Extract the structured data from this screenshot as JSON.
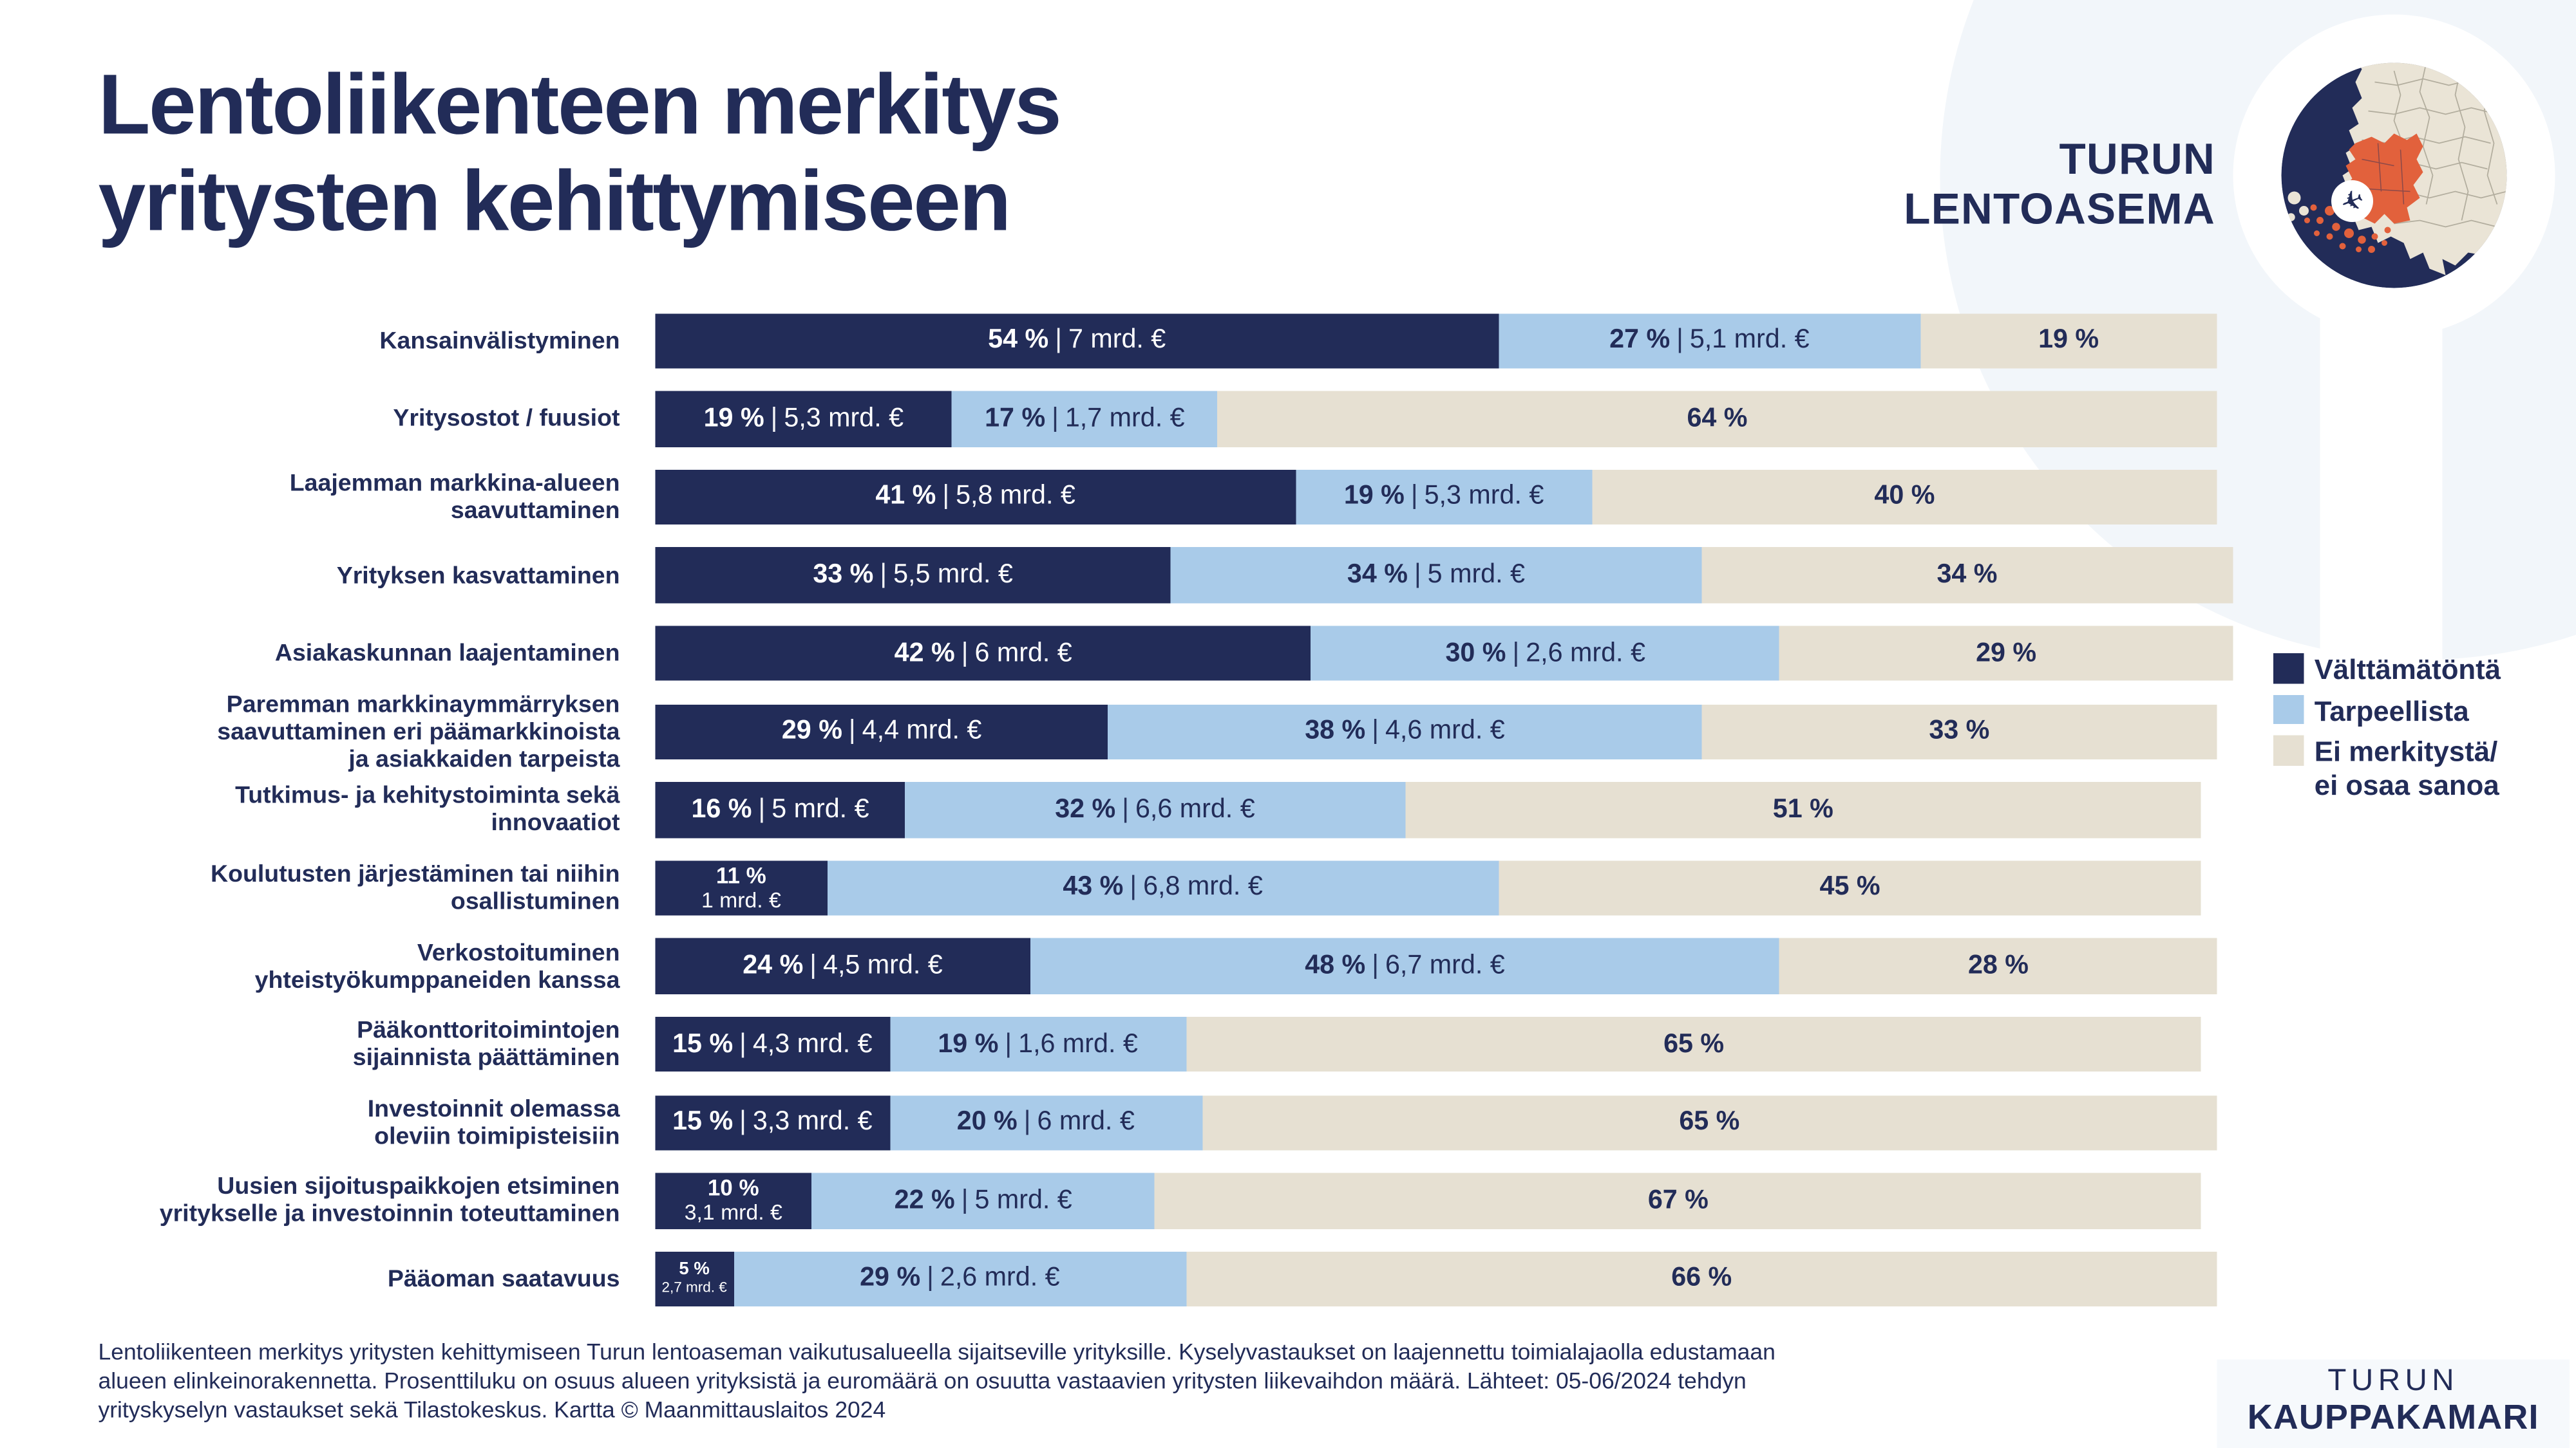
{
  "page": {
    "title_lines": [
      "Lentoliikenteen merkitys",
      "yritysten kehittymiseen"
    ],
    "airport_logo": {
      "line1": "TURUN",
      "line2": "LENTOASEMA"
    },
    "chamber_logo": {
      "line1": "TURUN",
      "line2": "KAUPPAKAMARI"
    },
    "footer_lines": [
      "Lentoliikenteen merkitys yritysten kehittymiseen Turun lentoaseman vaikutusalueella sijaitseville yrityksille. Kyselyvastaukset on laajennettu toimialajaolla edustamaan",
      "alueen elinkeinorakennetta. Prosenttiluku on osuus alueen yrityksistä ja euromäärä on osuutta vastaavien yritysten liikevaihdon määrä. Lähteet: 05-06/2024 tehdyn",
      "yrityskyselyn vastaukset sekä Tilastokeskus. Kartta © Maanmittauslaitos 2024"
    ]
  },
  "colors": {
    "navy": "#222C58",
    "blue": "#A9CBE9",
    "beige": "#E6E0D2",
    "pale": "#F2F6FA",
    "orange": "#E2613C",
    "land": "#EAE4D6",
    "border": "#A9A494",
    "white": "#FFFFFF"
  },
  "legend": {
    "items": [
      {
        "label_lines": [
          "Välttämätöntä"
        ],
        "color_key": "navy"
      },
      {
        "label_lines": [
          "Tarpeellista"
        ],
        "color_key": "blue"
      },
      {
        "label_lines": [
          "Ei merkitystä/",
          "ei osaa sanoa"
        ],
        "color_key": "beige"
      }
    ]
  },
  "rows": [
    {
      "label_lines": [
        "Kansainvälistyminen"
      ],
      "necessary": {
        "pct": 54,
        "amount": "7 mrd. €",
        "layout": "inline"
      },
      "useful": {
        "pct": 27,
        "amount": "5,1 mrd. €"
      },
      "none": {
        "pct": 19
      }
    },
    {
      "label_lines": [
        "Yritysostot / fuusiot"
      ],
      "necessary": {
        "pct": 19,
        "amount": "5,3 mrd. €",
        "layout": "inline"
      },
      "useful": {
        "pct": 17,
        "amount": "1,7 mrd. €"
      },
      "none": {
        "pct": 64
      }
    },
    {
      "label_lines": [
        "Laajemman markkina-alueen",
        "saavuttaminen"
      ],
      "necessary": {
        "pct": 41,
        "amount": "5,8 mrd. €",
        "layout": "inline"
      },
      "useful": {
        "pct": 19,
        "amount": "5,3 mrd. €"
      },
      "none": {
        "pct": 40
      }
    },
    {
      "label_lines": [
        "Yrityksen kasvattaminen"
      ],
      "necessary": {
        "pct": 33,
        "amount": "5,5 mrd. €",
        "layout": "inline"
      },
      "useful": {
        "pct": 34,
        "amount": "5 mrd. €"
      },
      "none": {
        "pct": 34
      }
    },
    {
      "label_lines": [
        "Asiakaskunnan laajentaminen"
      ],
      "necessary": {
        "pct": 42,
        "amount": "6 mrd. €",
        "layout": "inline"
      },
      "useful": {
        "pct": 30,
        "amount": "2,6 mrd. €"
      },
      "none": {
        "pct": 29
      }
    },
    {
      "label_lines": [
        "Paremman markkinaymmärryksen",
        "saavuttaminen eri päämarkkinoista",
        "ja asiakkaiden tarpeista"
      ],
      "necessary": {
        "pct": 29,
        "amount": "4,4 mrd. €",
        "layout": "inline"
      },
      "useful": {
        "pct": 38,
        "amount": "4,6 mrd. €"
      },
      "none": {
        "pct": 33
      }
    },
    {
      "label_lines": [
        "Tutkimus- ja kehitystoiminta sekä",
        "innovaatiot"
      ],
      "necessary": {
        "pct": 16,
        "amount": "5 mrd. €",
        "layout": "inline"
      },
      "useful": {
        "pct": 32,
        "amount": "6,6 mrd. €"
      },
      "none": {
        "pct": 51
      }
    },
    {
      "label_lines": [
        "Koulutusten järjestäminen tai niihin",
        "osallistuminen"
      ],
      "necessary": {
        "pct": 11,
        "amount": "1 mrd. €",
        "layout": "stacked"
      },
      "useful": {
        "pct": 43,
        "amount": "6,8 mrd. €"
      },
      "none": {
        "pct": 45
      }
    },
    {
      "label_lines": [
        "Verkostoituminen",
        "yhteistyökumppaneiden kanssa"
      ],
      "necessary": {
        "pct": 24,
        "amount": "4,5 mrd. €",
        "layout": "inline"
      },
      "useful": {
        "pct": 48,
        "amount": "6,7 mrd. €"
      },
      "none": {
        "pct": 28
      }
    },
    {
      "label_lines": [
        "Pääkonttoritoimintojen",
        "sijainnista päättäminen"
      ],
      "necessary": {
        "pct": 15,
        "amount": "4,3 mrd. €",
        "layout": "inline"
      },
      "useful": {
        "pct": 19,
        "amount": "1,6 mrd. €"
      },
      "none": {
        "pct": 65
      }
    },
    {
      "label_lines": [
        "Investoinnit olemassa",
        "oleviin toimipisteisiin"
      ],
      "necessary": {
        "pct": 15,
        "amount": "3,3 mrd. €",
        "layout": "inline"
      },
      "useful": {
        "pct": 20,
        "amount": "6 mrd. €"
      },
      "none": {
        "pct": 65
      }
    },
    {
      "label_lines": [
        "Uusien sijoituspaikkojen etsiminen",
        "yritykselle ja investoinnin toteuttaminen"
      ],
      "necessary": {
        "pct": 10,
        "amount": "3,1 mrd. €",
        "layout": "stacked"
      },
      "useful": {
        "pct": 22,
        "amount": "5 mrd. €"
      },
      "none": {
        "pct": 67
      }
    },
    {
      "label_lines": [
        "Pääoman saatavuus"
      ],
      "necessary": {
        "pct": 5,
        "amount": "2,7 mrd. €",
        "layout": "stacked-small"
      },
      "useful": {
        "pct": 29,
        "amount": "2,6 mrd. €"
      },
      "none": {
        "pct": 66
      }
    }
  ],
  "chart_data": {
    "type": "bar",
    "subtype": "horizontal-stacked",
    "title": "Lentoliikenteen merkitys yritysten kehittymiseen",
    "xlabel": "% osuus alueen yrityksistä | euromäärä = osuutta vastaavien yritysten liikevaihto",
    "x_range_pct": [
      0,
      100
    ],
    "legend_position": "right",
    "grid": false,
    "categories": [
      "Kansainvälistyminen",
      "Yritysostot / fuusiot",
      "Laajemman markkina-alueen saavuttaminen",
      "Yrityksen kasvattaminen",
      "Asiakaskunnan laajentaminen",
      "Paremman markkinaymmärryksen saavuttaminen eri päämarkkinoista ja asiakkaiden tarpeista",
      "Tutkimus- ja kehitystoiminta sekä innovaatiot",
      "Koulutusten järjestäminen tai niihin osallistuminen",
      "Verkostoituminen yhteistyökumppaneiden kanssa",
      "Pääkonttoritoimintojen sijainnista päättäminen",
      "Investoinnit olemassa oleviin toimipisteisiin",
      "Uusien sijoituspaikkojen etsiminen yritykselle ja investoinnin toteuttaminen",
      "Pääoman saatavuus"
    ],
    "series": [
      {
        "name": "Välttämätöntä",
        "values_pct": [
          54,
          19,
          41,
          33,
          42,
          29,
          16,
          11,
          24,
          15,
          15,
          10,
          5
        ],
        "amounts": [
          "7 mrd. €",
          "5,3 mrd. €",
          "5,8 mrd. €",
          "5,5 mrd. €",
          "6 mrd. €",
          "4,4 mrd. €",
          "5 mrd. €",
          "1 mrd. €",
          "4,5 mrd. €",
          "4,3 mrd. €",
          "3,3 mrd. €",
          "3,1 mrd. €",
          "2,7 mrd. €"
        ]
      },
      {
        "name": "Tarpeellista",
        "values_pct": [
          27,
          17,
          19,
          34,
          30,
          38,
          32,
          43,
          48,
          19,
          20,
          22,
          29
        ],
        "amounts": [
          "5,1 mrd. €",
          "1,7 mrd. €",
          "5,3 mrd. €",
          "5 mrd. €",
          "2,6 mrd. €",
          "4,6 mrd. €",
          "6,6 mrd. €",
          "6,8 mrd. €",
          "6,7 mrd. €",
          "1,6 mrd. €",
          "6 mrd. €",
          "5 mrd. €",
          "2,6 mrd. €"
        ]
      },
      {
        "name": "Ei merkitystä/ei osaa sanoa",
        "values_pct": [
          19,
          64,
          40,
          34,
          29,
          33,
          51,
          45,
          28,
          65,
          65,
          67,
          66
        ]
      }
    ]
  }
}
